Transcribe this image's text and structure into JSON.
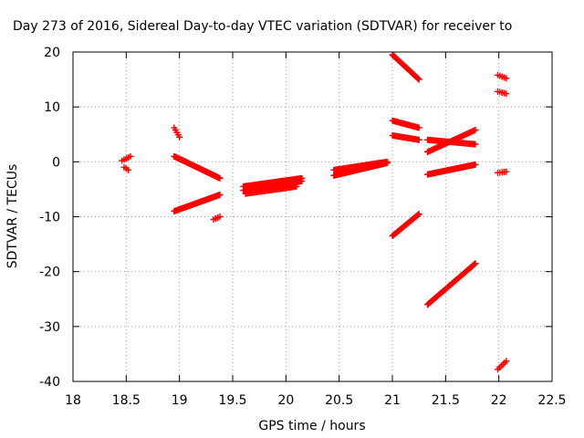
{
  "chart_data": {
    "type": "scatter",
    "title": "Day 273 of 2016, Sidereal Day-to-day VTEC variation (SDTVAR) for receiver to",
    "xlabel": "GPS time / hours",
    "ylabel": "SDTVAR / TECUs",
    "xlim": [
      18,
      22.5
    ],
    "ylim": [
      -40,
      20
    ],
    "xticks": [
      18,
      18.5,
      19,
      19.5,
      20,
      20.5,
      21,
      21.5,
      22,
      22.5
    ],
    "yticks": [
      -40,
      -30,
      -20,
      -10,
      0,
      10,
      20
    ],
    "grid": true,
    "marker": "plus",
    "color": "#ff0000",
    "series": [
      {
        "segments": [
          {
            "x0": 18.46,
            "y0": 0.2,
            "x1": 18.54,
            "y1": 1.0,
            "n": 5
          },
          {
            "x0": 18.48,
            "y0": -1.0,
            "x1": 18.52,
            "y1": -1.5,
            "n": 3
          },
          {
            "x0": 18.95,
            "y0": 6.2,
            "x1": 19.0,
            "y1": 4.5,
            "n": 5
          },
          {
            "x0": 18.95,
            "y0": 1.0,
            "x1": 19.38,
            "y1": -3.0,
            "n": 60
          },
          {
            "x0": 18.95,
            "y0": -9.0,
            "x1": 19.38,
            "y1": -6.0,
            "n": 50
          },
          {
            "x0": 19.32,
            "y0": -10.5,
            "x1": 19.38,
            "y1": -10.0,
            "n": 4
          },
          {
            "x0": 19.6,
            "y0": -5.2,
            "x1": 20.15,
            "y1": -3.5,
            "n": 70
          },
          {
            "x0": 19.6,
            "y0": -4.5,
            "x1": 20.15,
            "y1": -3.0,
            "n": 70
          },
          {
            "x0": 19.62,
            "y0": -5.8,
            "x1": 20.1,
            "y1": -4.5,
            "n": 40
          },
          {
            "x0": 20.45,
            "y0": -2.5,
            "x1": 20.95,
            "y1": -0.2,
            "n": 70
          },
          {
            "x0": 20.45,
            "y0": -1.5,
            "x1": 20.95,
            "y1": 0.0,
            "n": 50
          },
          {
            "x0": 21.0,
            "y0": 19.5,
            "x1": 21.25,
            "y1": 15.0,
            "n": 40
          },
          {
            "x0": 21.0,
            "y0": 7.5,
            "x1": 21.25,
            "y1": 6.2,
            "n": 25
          },
          {
            "x0": 21.0,
            "y0": 4.8,
            "x1": 21.25,
            "y1": 4.0,
            "n": 25
          },
          {
            "x0": 21.0,
            "y0": -13.5,
            "x1": 21.25,
            "y1": -9.5,
            "n": 35
          },
          {
            "x0": 21.33,
            "y0": 4.0,
            "x1": 21.78,
            "y1": 3.2,
            "n": 40
          },
          {
            "x0": 21.33,
            "y0": 1.8,
            "x1": 21.78,
            "y1": 5.8,
            "n": 40
          },
          {
            "x0": 21.33,
            "y0": -2.3,
            "x1": 21.78,
            "y1": -0.5,
            "n": 55
          },
          {
            "x0": 21.33,
            "y0": -26.0,
            "x1": 21.78,
            "y1": -18.5,
            "n": 60
          },
          {
            "x0": 21.99,
            "y0": 15.8,
            "x1": 22.07,
            "y1": 15.2,
            "n": 5
          },
          {
            "x0": 21.99,
            "y0": 12.8,
            "x1": 22.07,
            "y1": 12.4,
            "n": 5
          },
          {
            "x0": 21.99,
            "y0": -2.0,
            "x1": 22.07,
            "y1": -1.8,
            "n": 5
          },
          {
            "x0": 21.99,
            "y0": -37.8,
            "x1": 22.07,
            "y1": -36.3,
            "n": 6
          }
        ]
      }
    ]
  }
}
